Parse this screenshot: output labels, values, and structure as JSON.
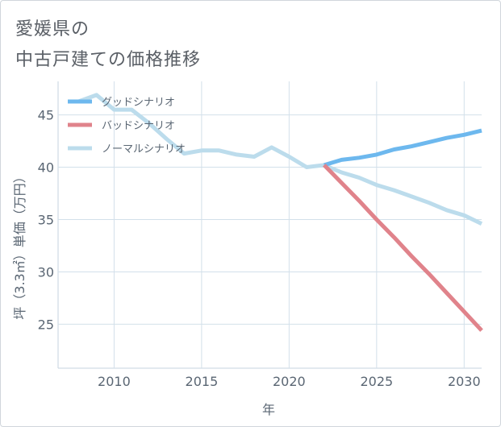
{
  "title_lines": [
    "愛媛県の",
    "中古戸建ての価格推移"
  ],
  "chart_data": {
    "type": "line",
    "xlabel": "年",
    "ylabel": "坪（3.3㎡）単価（万円）",
    "xlim": [
      2006.8,
      2031
    ],
    "ylim": [
      20.8,
      48.2
    ],
    "xticks": [
      2010,
      2015,
      2020,
      2025,
      2030
    ],
    "yticks": [
      25,
      30,
      35,
      40,
      45
    ],
    "legend_position": "top-left",
    "series": [
      {
        "name": "グッドシナリオ",
        "color": "#6db8ee",
        "x": [
          2022,
          2023,
          2024,
          2025,
          2026,
          2027,
          2028,
          2029,
          2030,
          2031
        ],
        "y": [
          40.2,
          40.7,
          40.9,
          41.2,
          41.7,
          42.0,
          42.4,
          42.8,
          43.1,
          43.5
        ]
      },
      {
        "name": "バッドシナリオ",
        "color": "#e0838b",
        "x": [
          2022,
          2023,
          2024,
          2025,
          2026,
          2027,
          2028,
          2029,
          2030,
          2031
        ],
        "y": [
          40.2,
          38.5,
          36.8,
          35.0,
          33.3,
          31.5,
          29.8,
          28.0,
          26.2,
          24.4
        ]
      },
      {
        "name": "ノーマルシナリオ",
        "color": "#bcdcec",
        "x": [
          2008,
          2009,
          2010,
          2011,
          2012,
          2013,
          2014,
          2015,
          2016,
          2017,
          2018,
          2019,
          2020,
          2021,
          2022,
          2023,
          2024,
          2025,
          2026,
          2027,
          2028,
          2029,
          2030,
          2031
        ],
        "y": [
          46.3,
          46.9,
          45.5,
          45.5,
          44.2,
          42.7,
          41.3,
          41.6,
          41.6,
          41.2,
          41.0,
          41.9,
          41.0,
          40.0,
          40.2,
          39.5,
          39.0,
          38.3,
          37.8,
          37.2,
          36.6,
          35.9,
          35.4,
          34.6
        ]
      }
    ]
  }
}
